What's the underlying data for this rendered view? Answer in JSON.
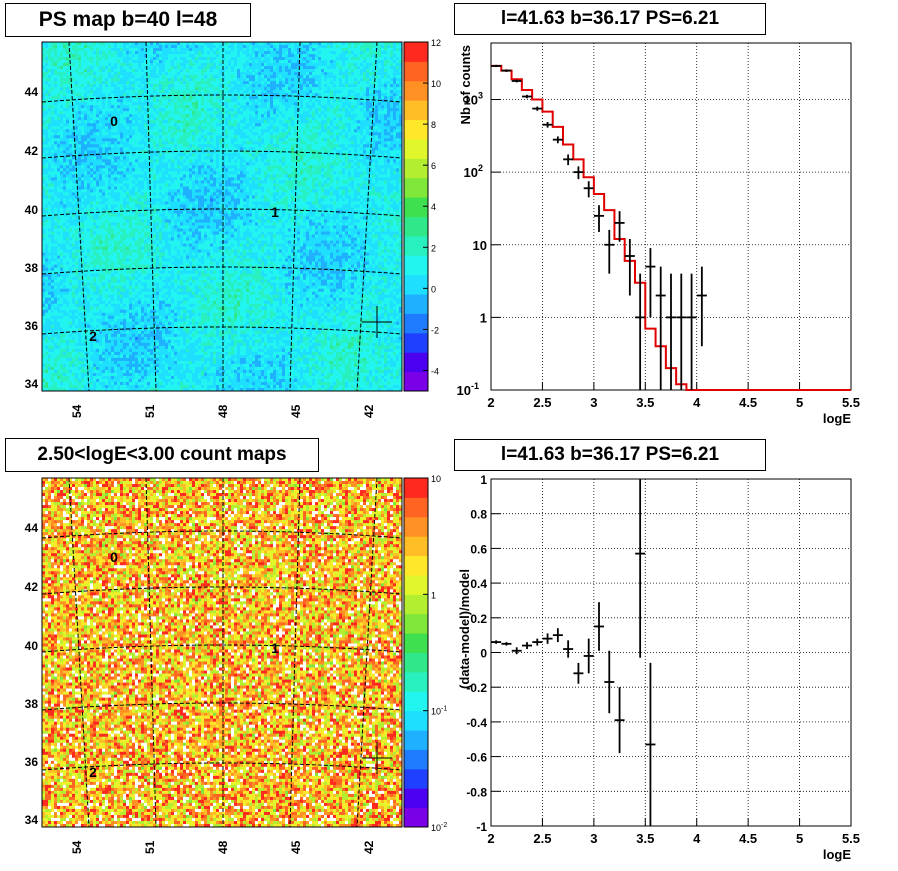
{
  "maps": [
    {
      "title": "PS map b=40 l=48",
      "xticks": [
        "54",
        "51",
        "48",
        "45",
        "42"
      ],
      "yticks": [
        "44",
        "42",
        "40",
        "38",
        "36",
        "34"
      ],
      "colorbar_ticks": [
        "12",
        "10",
        "8",
        "6",
        "4",
        "2",
        "0",
        "-2",
        "-4"
      ],
      "colorbar_range": [
        -5,
        12
      ],
      "markers": [
        "0",
        "1",
        "2"
      ]
    },
    {
      "title": "2.50<logE<3.00 count maps",
      "xticks": [
        "54",
        "51",
        "48",
        "45",
        "42"
      ],
      "yticks": [
        "44",
        "42",
        "40",
        "38",
        "36",
        "34"
      ],
      "colorbar_ticks": [
        "10",
        "1",
        "10-1",
        "10-2"
      ],
      "colorbar_log": true,
      "markers": [
        "0",
        "1",
        "2"
      ]
    }
  ],
  "chart_data": [
    {
      "type": "line",
      "title": "l=41.63 b=36.17 PS=6.21",
      "xlabel": "logE",
      "ylabel": "Nb of counts",
      "xlim": [
        2,
        5.5
      ],
      "ylim": [
        0.1,
        6000
      ],
      "yscale": "log",
      "grid": true,
      "xticks": [
        "2",
        "2.5",
        "3",
        "3.5",
        "4",
        "4.5",
        "5",
        "5.5"
      ],
      "yticks": [
        "10^3",
        "10^2",
        "10",
        "1",
        "10^-1"
      ],
      "data_points": {
        "x": [
          2.05,
          2.15,
          2.25,
          2.35,
          2.45,
          2.55,
          2.65,
          2.75,
          2.85,
          2.95,
          3.05,
          3.15,
          3.25,
          3.35,
          3.45,
          3.55,
          3.65,
          3.75,
          3.85,
          3.95,
          4.05,
          4.25
        ],
        "y": [
          2900,
          2500,
          1800,
          1100,
          750,
          450,
          280,
          150,
          100,
          60,
          25,
          10,
          20,
          7,
          1,
          5,
          2,
          1,
          1,
          1,
          2,
          0
        ],
        "yerr_lo": [
          100,
          100,
          80,
          60,
          50,
          40,
          30,
          25,
          20,
          15,
          10,
          6,
          9,
          5,
          0.99,
          4,
          1.99,
          0.99,
          0.99,
          0.99,
          1.6,
          0
        ],
        "yerr_hi": [
          100,
          100,
          80,
          60,
          50,
          40,
          30,
          25,
          20,
          15,
          10,
          6,
          9,
          5,
          3,
          4,
          3,
          3,
          3,
          3,
          3,
          0
        ]
      },
      "model": {
        "edges": [
          2.0,
          2.1,
          2.2,
          2.3,
          2.4,
          2.5,
          2.6,
          2.7,
          2.8,
          2.9,
          3.0,
          3.1,
          3.2,
          3.3,
          3.4,
          3.5,
          3.6,
          3.7,
          3.8,
          3.9,
          4.0,
          5.5
        ],
        "values": [
          2900,
          2500,
          1900,
          1350,
          1000,
          680,
          420,
          240,
          150,
          85,
          50,
          30,
          12,
          6,
          3,
          0.7,
          0.4,
          0.2,
          0.12,
          0.1,
          0.1
        ]
      }
    },
    {
      "type": "scatter",
      "title": "l=41.63 b=36.17 PS=6.21",
      "xlabel": "logE",
      "ylabel": "(data-model)/model",
      "xlim": [
        2,
        5.5
      ],
      "ylim": [
        -1,
        1
      ],
      "grid": true,
      "xticks": [
        "2",
        "2.5",
        "3",
        "3.5",
        "4",
        "4.5",
        "5",
        "5.5"
      ],
      "yticks": [
        "1",
        "0.8",
        "0.6",
        "0.4",
        "0.2",
        "0",
        "-0.2",
        "-0.4",
        "-0.6",
        "-0.8",
        "-1"
      ],
      "x": [
        2.05,
        2.15,
        2.25,
        2.35,
        2.45,
        2.55,
        2.65,
        2.75,
        2.85,
        2.95,
        3.05,
        3.15,
        3.25,
        3.45,
        3.55
      ],
      "y": [
        0.06,
        0.05,
        0.01,
        0.04,
        0.06,
        0.08,
        0.1,
        0.02,
        -0.12,
        -0.02,
        0.15,
        -0.17,
        -0.39,
        0.57,
        -0.53
      ],
      "yerr": [
        0.01,
        0.01,
        0.02,
        0.02,
        0.02,
        0.03,
        0.04,
        0.05,
        0.06,
        0.1,
        0.14,
        0.18,
        0.19,
        0.6,
        0.47
      ]
    }
  ]
}
